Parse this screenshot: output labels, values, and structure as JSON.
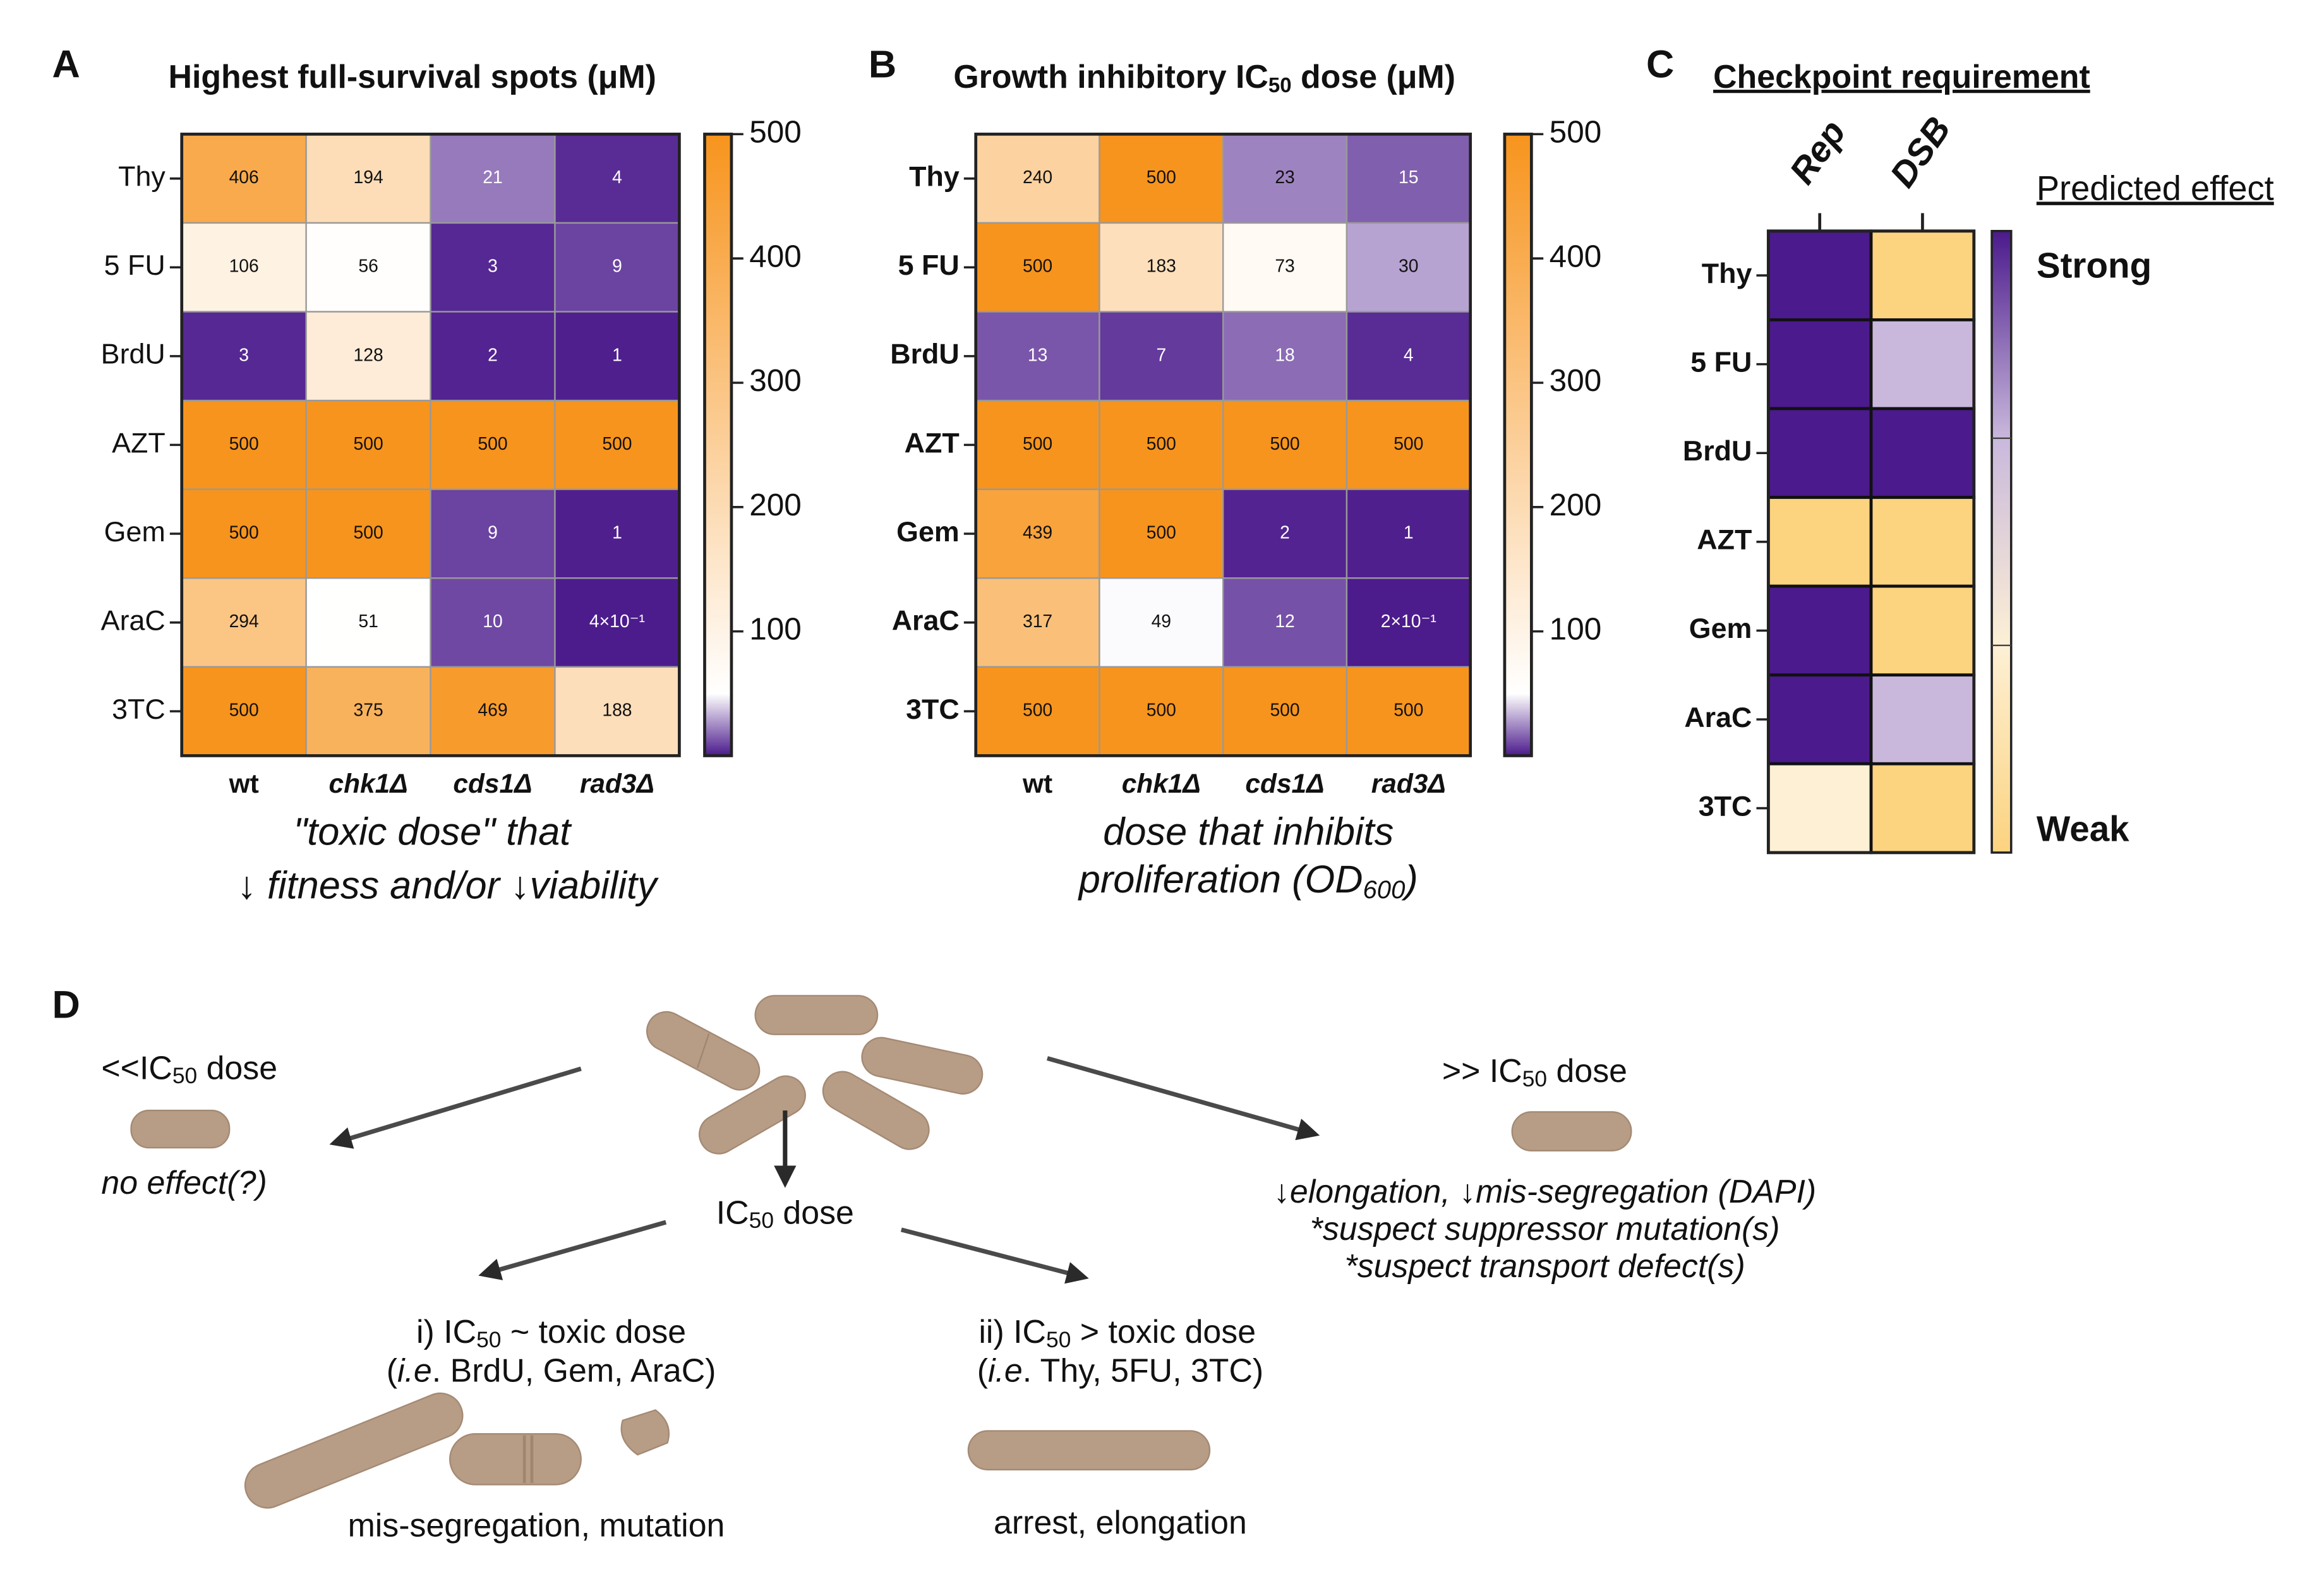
{
  "panels": [
    "A",
    "B",
    "C",
    "D"
  ],
  "chart_data": [
    {
      "type": "heatmap",
      "title": [
        "Highest full-survival spots (μM)"
      ],
      "rows": [
        "Thy",
        "5 FU",
        "BrdU",
        "AZT",
        "Gem",
        "AraC",
        "3TC"
      ],
      "columns": [
        "wt",
        "chk1Δ",
        "cds1Δ",
        "rad3Δ"
      ],
      "values": [
        [
          406,
          194,
          21,
          4
        ],
        [
          106,
          56,
          3,
          9
        ],
        [
          3,
          128,
          2,
          1
        ],
        [
          500,
          500,
          500,
          500
        ],
        [
          500,
          500,
          9,
          1
        ],
        [
          294,
          51,
          10,
          0.4
        ],
        [
          500,
          375,
          469,
          188
        ]
      ],
      "value_labels": [
        [
          "406",
          "194",
          "21",
          "4"
        ],
        [
          "106",
          "56",
          "3",
          "9"
        ],
        [
          "3",
          "128",
          "2",
          "1"
        ],
        [
          "500",
          "500",
          "500",
          "500"
        ],
        [
          "500",
          "500",
          "9",
          "1"
        ],
        [
          "294",
          "51",
          "10",
          "4×10⁻¹"
        ],
        [
          "500",
          "375",
          "469",
          "188"
        ]
      ],
      "clim": [
        0,
        500
      ],
      "cticks": [
        100,
        200,
        300,
        400,
        500
      ],
      "colorscale": [
        {
          "value": 0,
          "color": "#4b1a8c"
        },
        {
          "value": 50,
          "color": "#ffffff"
        },
        {
          "value": 500,
          "color": "#f7941d"
        }
      ],
      "caption": [
        [
          "\"toxic dose\" that"
        ],
        [
          "↓ fitness and/or  ↓viability"
        ]
      ]
    },
    {
      "type": "heatmap",
      "title": [
        "Growth inhibitory IC",
        "50",
        " dose (μM)"
      ],
      "rows": [
        "Thy",
        "5 FU",
        "BrdU",
        "AZT",
        "Gem",
        "AraC",
        "3TC"
      ],
      "columns": [
        "wt",
        "chk1Δ",
        "cds1Δ",
        "rad3Δ"
      ],
      "values": [
        [
          240,
          500,
          23,
          15
        ],
        [
          500,
          183,
          73,
          30
        ],
        [
          13,
          7,
          18,
          4
        ],
        [
          500,
          500,
          500,
          500
        ],
        [
          439,
          500,
          2,
          1
        ],
        [
          317,
          49,
          12,
          0.2
        ],
        [
          500,
          500,
          500,
          500
        ]
      ],
      "value_labels": [
        [
          "240",
          "500",
          "23",
          "15"
        ],
        [
          "500",
          "183",
          "73",
          "30"
        ],
        [
          "13",
          "7",
          "18",
          "4"
        ],
        [
          "500",
          "500",
          "500",
          "500"
        ],
        [
          "439",
          "500",
          "2",
          "1"
        ],
        [
          "317",
          "49",
          "12",
          "2×10⁻¹"
        ],
        [
          "500",
          "500",
          "500",
          "500"
        ]
      ],
      "clim": [
        0,
        500
      ],
      "cticks": [
        100,
        200,
        300,
        400,
        500
      ],
      "colorscale": [
        {
          "value": 0,
          "color": "#4b1a8c"
        },
        {
          "value": 50,
          "color": "#ffffff"
        },
        {
          "value": 500,
          "color": "#f7941d"
        }
      ],
      "caption": [
        [
          "dose that inhibits"
        ],
        [
          "proliferation (OD",
          "600",
          ")"
        ]
      ]
    },
    {
      "type": "categorical_heatmap",
      "title": [
        "Checkpoint requirement"
      ],
      "rows": [
        "Thy",
        "5 FU",
        "BrdU",
        "AZT",
        "Gem",
        "AraC",
        "3TC"
      ],
      "columns": [
        "Rep",
        "DSB"
      ],
      "colors": [
        [
          "#4b1a8c",
          "#fcd37f"
        ],
        [
          "#4b1a8c",
          "#c9b8dc"
        ],
        [
          "#4b1a8c",
          "#4b1a8c"
        ],
        [
          "#fcd37f",
          "#fcd37f"
        ],
        [
          "#4b1a8c",
          "#fcd37f"
        ],
        [
          "#4b1a8c",
          "#c9b8dc"
        ],
        [
          "#fdf0d5",
          "#fcd37f"
        ]
      ],
      "legend_title": "Predicted effect",
      "legend_top": "Strong",
      "legend_bottom": "Weak",
      "legend_colors": [
        "#4b1a8c",
        "#c9b8dc",
        "#fdf0d5",
        "#fcd37f"
      ]
    }
  ],
  "diagram": {
    "low": {
      "label": [
        "<<IC",
        "50",
        " dose"
      ],
      "effect": "no effect(?)"
    },
    "mid": {
      "label": [
        "IC",
        "50",
        " dose"
      ]
    },
    "high": {
      "label": [
        ">> IC",
        "50",
        " dose"
      ],
      "effects": [
        "↓elongation,  ↓mis-segregation (DAPI)",
        "*suspect suppressor mutation(s)",
        "*suspect transport defect(s)"
      ]
    },
    "case_i": {
      "label": [
        "i) IC",
        "50",
        " ~ toxic dose"
      ],
      "example": [
        "(",
        "i.e",
        ". BrdU, Gem, AraC)"
      ],
      "outcome": "mis-segregation, mutation"
    },
    "case_ii": {
      "label": [
        "ii) IC",
        "50",
        " > toxic dose"
      ],
      "example": [
        "(",
        "i.e",
        ". Thy, 5FU, 3TC)"
      ],
      "outcome": "arrest, elongation"
    }
  }
}
